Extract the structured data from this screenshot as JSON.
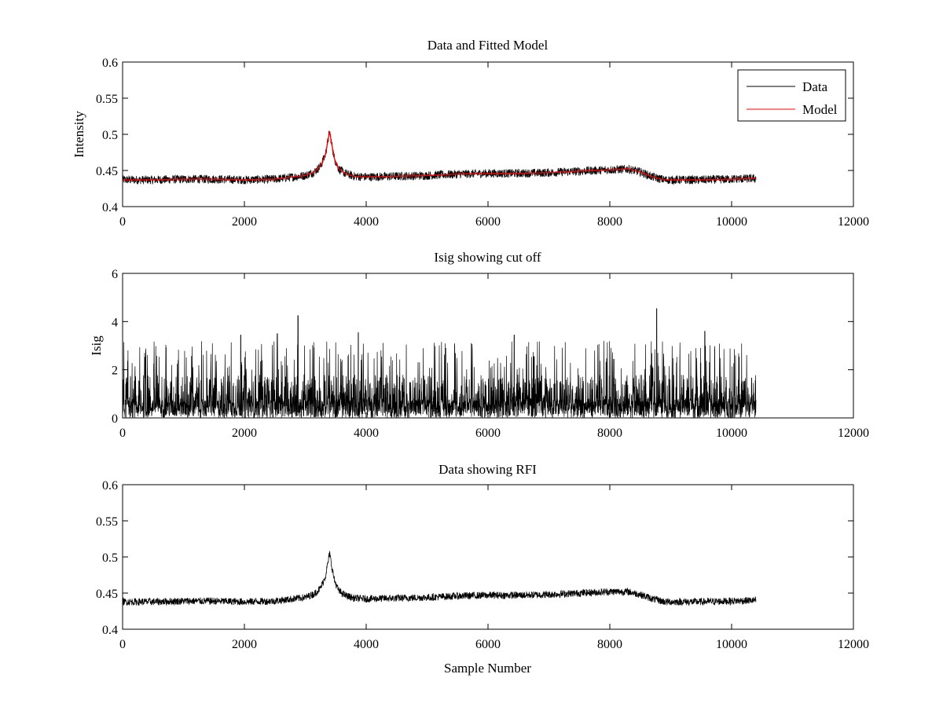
{
  "figure": {
    "background": "#ffffff"
  },
  "chart_data": [
    {
      "type": "line",
      "title": "Data and Fitted Model",
      "xlabel": "",
      "ylabel": "Intensity",
      "xlim": [
        0,
        12000
      ],
      "ylim": [
        0.4,
        0.6
      ],
      "xticks": [
        0,
        2000,
        4000,
        6000,
        8000,
        10000,
        12000
      ],
      "yticks": [
        0.4,
        0.45,
        0.5,
        0.55,
        0.6
      ],
      "xtick_labels": [
        "0",
        "2000",
        "4000",
        "6000",
        "8000",
        "10000",
        "12000"
      ],
      "ytick_labels": [
        "0.4",
        "0.45",
        "0.5",
        "0.55",
        "0.6"
      ],
      "legend": {
        "position": "top-right",
        "entries": [
          "Data",
          "Model"
        ]
      },
      "grid": false,
      "series": [
        {
          "name": "Data",
          "color": "#000000",
          "style": "noisy",
          "x": [
            0,
            500,
            1000,
            1500,
            2000,
            2500,
            2800,
            3000,
            3150,
            3250,
            3330,
            3380,
            3400,
            3430,
            3480,
            3550,
            3650,
            3800,
            4000,
            4500,
            5000,
            5500,
            6000,
            6500,
            7000,
            7500,
            8000,
            8300,
            8500,
            8700,
            8900,
            9500,
            10000,
            10400
          ],
          "y": [
            0.437,
            0.437,
            0.438,
            0.438,
            0.437,
            0.438,
            0.441,
            0.443,
            0.448,
            0.456,
            0.472,
            0.495,
            0.504,
            0.488,
            0.466,
            0.452,
            0.446,
            0.442,
            0.441,
            0.442,
            0.443,
            0.445,
            0.446,
            0.446,
            0.447,
            0.449,
            0.451,
            0.452,
            0.448,
            0.441,
            0.437,
            0.437,
            0.438,
            0.439
          ],
          "noise_amplitude": 0.006
        },
        {
          "name": "Model",
          "color": "#ff0000",
          "style": "smooth",
          "x": [
            0,
            500,
            1000,
            1500,
            2000,
            2500,
            2800,
            3000,
            3150,
            3250,
            3330,
            3380,
            3400,
            3430,
            3480,
            3550,
            3650,
            3800,
            4000,
            4500,
            5000,
            5500,
            6000,
            6500,
            7000,
            7500,
            8000,
            8300,
            8500,
            8700,
            8900,
            9500,
            10000,
            10400
          ],
          "y": [
            0.437,
            0.437,
            0.438,
            0.438,
            0.437,
            0.438,
            0.441,
            0.443,
            0.448,
            0.456,
            0.472,
            0.495,
            0.504,
            0.488,
            0.466,
            0.452,
            0.446,
            0.442,
            0.441,
            0.442,
            0.443,
            0.445,
            0.446,
            0.446,
            0.447,
            0.449,
            0.451,
            0.452,
            0.448,
            0.441,
            0.437,
            0.437,
            0.438,
            0.439
          ]
        }
      ]
    },
    {
      "type": "line",
      "title": "Isig showing cut off",
      "xlabel": "",
      "ylabel": "Isig",
      "xlim": [
        0,
        12000
      ],
      "ylim": [
        0,
        6
      ],
      "xticks": [
        0,
        2000,
        4000,
        6000,
        8000,
        10000,
        12000
      ],
      "yticks": [
        0,
        2,
        4,
        6
      ],
      "xtick_labels": [
        "0",
        "2000",
        "4000",
        "6000",
        "8000",
        "10000",
        "12000"
      ],
      "ytick_labels": [
        "0",
        "2",
        "4",
        "6"
      ],
      "grid": false,
      "series": [
        {
          "color": "#000000",
          "style": "spiky-noise",
          "x_range": [
            0,
            10400
          ],
          "typical_max": 2.0,
          "peak_values": [
            {
              "x": 2880,
              "y": 4.25
            },
            {
              "x": 3870,
              "y": 3.55
            },
            {
              "x": 8770,
              "y": 4.55
            },
            {
              "x": 9560,
              "y": 3.6
            },
            {
              "x": 1940,
              "y": 3.45
            },
            {
              "x": 2540,
              "y": 3.5
            },
            {
              "x": 6430,
              "y": 3.45
            }
          ]
        }
      ]
    },
    {
      "type": "line",
      "title": "Data showing RFI",
      "xlabel": "Sample Number",
      "ylabel": "",
      "xlim": [
        0,
        12000
      ],
      "ylim": [
        0.4,
        0.6
      ],
      "xticks": [
        0,
        2000,
        4000,
        6000,
        8000,
        10000,
        12000
      ],
      "yticks": [
        0.4,
        0.45,
        0.5,
        0.55,
        0.6
      ],
      "xtick_labels": [
        "0",
        "2000",
        "4000",
        "6000",
        "8000",
        "10000",
        "12000"
      ],
      "ytick_labels": [
        "0.4",
        "0.45",
        "0.5",
        "0.55",
        "0.6"
      ],
      "grid": false,
      "series": [
        {
          "color": "#000000",
          "style": "noisy",
          "x": [
            0,
            500,
            1000,
            1500,
            2000,
            2500,
            2800,
            3000,
            3150,
            3250,
            3330,
            3380,
            3400,
            3430,
            3480,
            3550,
            3650,
            3800,
            4000,
            4500,
            5000,
            5500,
            6000,
            6500,
            7000,
            7500,
            8000,
            8300,
            8500,
            8700,
            8900,
            9500,
            10000,
            10400
          ],
          "y": [
            0.438,
            0.438,
            0.439,
            0.439,
            0.438,
            0.439,
            0.442,
            0.444,
            0.449,
            0.457,
            0.473,
            0.496,
            0.505,
            0.489,
            0.467,
            0.453,
            0.447,
            0.443,
            0.442,
            0.443,
            0.444,
            0.446,
            0.447,
            0.447,
            0.448,
            0.45,
            0.452,
            0.452,
            0.448,
            0.442,
            0.438,
            0.438,
            0.439,
            0.44
          ],
          "noise_amplitude": 0.005
        }
      ]
    }
  ]
}
